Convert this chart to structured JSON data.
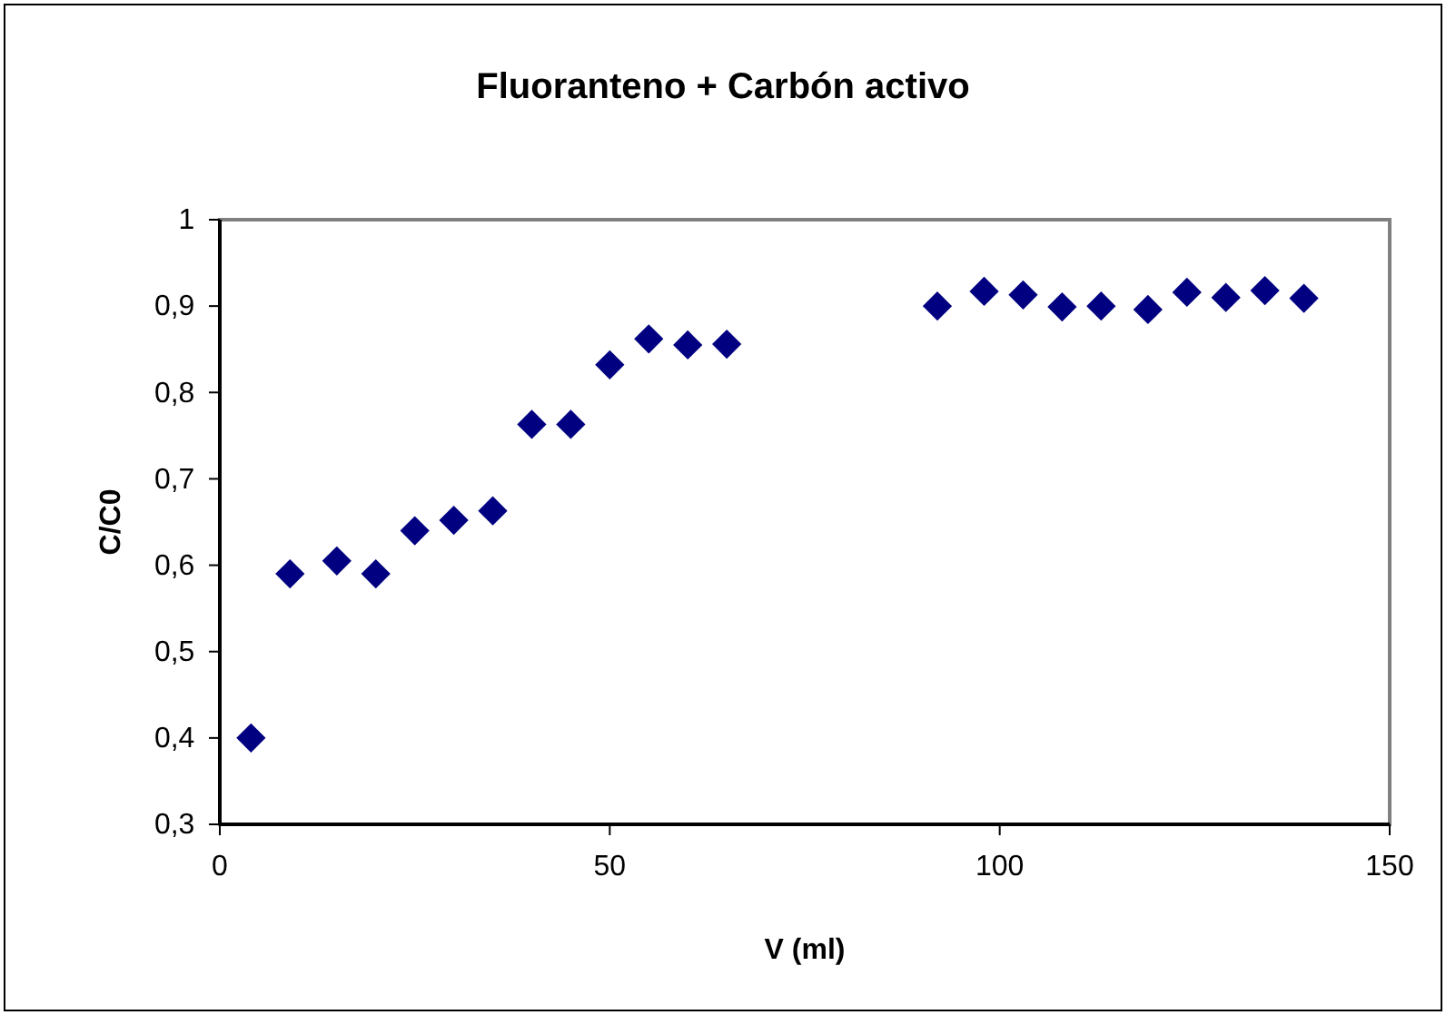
{
  "chart_data": {
    "type": "scatter",
    "title": "Fluoranteno + Carbón activo",
    "xlabel": "V (ml)",
    "ylabel": "C/C0",
    "x": [
      4,
      9,
      15,
      20,
      25,
      30,
      35,
      40,
      45,
      50,
      55,
      60,
      65,
      92,
      98,
      103,
      108,
      113,
      119,
      124,
      129,
      134,
      139
    ],
    "series": [
      {
        "color": "#000080",
        "values": [
          0.4,
          0.59,
          0.605,
          0.59,
          0.64,
          0.652,
          0.663,
          0.763,
          0.763,
          0.832,
          0.862,
          0.855,
          0.856,
          0.9,
          0.917,
          0.913,
          0.899,
          0.9,
          0.896,
          0.916,
          0.91,
          0.918,
          0.909
        ]
      }
    ],
    "xlim": [
      0,
      150
    ],
    "xticks": [
      0,
      50,
      100,
      150
    ],
    "ylim": [
      0.3,
      1
    ],
    "yticks": [
      {
        "value": 0.3,
        "label": "0,3"
      },
      {
        "value": 0.4,
        "label": "0,4"
      },
      {
        "value": 0.5,
        "label": "0,5"
      },
      {
        "value": 0.6,
        "label": "0,6"
      },
      {
        "value": 0.7,
        "label": "0,7"
      },
      {
        "value": 0.8,
        "label": "0,8"
      },
      {
        "value": 0.9,
        "label": "0,9"
      },
      {
        "value": 1,
        "label": "1"
      }
    ],
    "marker": "diamond"
  }
}
